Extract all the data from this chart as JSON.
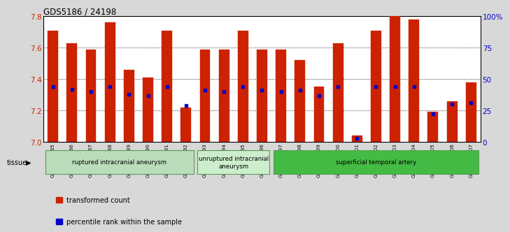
{
  "title": "GDS5186 / 24198",
  "samples": [
    "GSM1306885",
    "GSM1306886",
    "GSM1306887",
    "GSM1306888",
    "GSM1306889",
    "GSM1306890",
    "GSM1306891",
    "GSM1306892",
    "GSM1306893",
    "GSM1306894",
    "GSM1306895",
    "GSM1306896",
    "GSM1306897",
    "GSM1306898",
    "GSM1306899",
    "GSM1306900",
    "GSM1306901",
    "GSM1306902",
    "GSM1306903",
    "GSM1306904",
    "GSM1306905",
    "GSM1306906",
    "GSM1306907"
  ],
  "bar_values": [
    7.71,
    7.63,
    7.59,
    7.76,
    7.46,
    7.41,
    7.71,
    7.22,
    7.59,
    7.59,
    7.71,
    7.59,
    7.59,
    7.52,
    7.35,
    7.63,
    7.04,
    7.71,
    7.8,
    7.78,
    7.19,
    7.26,
    7.38
  ],
  "percentile_values": [
    44,
    42,
    40,
    44,
    38,
    37,
    44,
    29,
    41,
    40,
    44,
    41,
    40,
    41,
    37,
    44,
    3,
    44,
    44,
    44,
    22,
    30,
    31
  ],
  "y_min": 7.0,
  "y_max": 7.8,
  "bar_color": "#cc2200",
  "percentile_color": "#0000cc",
  "bg_color": "#d8d8d8",
  "plot_bg_color": "#ffffff",
  "groups": [
    {
      "label": "ruptured intracranial aneurysm",
      "start": 0,
      "end": 7,
      "color": "#bbddbb"
    },
    {
      "label": "unruptured intracranial\naneurysm",
      "start": 8,
      "end": 11,
      "color": "#cceecc"
    },
    {
      "label": "superficial temporal artery",
      "start": 12,
      "end": 22,
      "color": "#44bb44"
    }
  ],
  "legend_items": [
    {
      "label": "transformed count",
      "color": "#cc2200"
    },
    {
      "label": "percentile rank within the sample",
      "color": "#0000cc"
    }
  ],
  "tissue_label": "tissue"
}
